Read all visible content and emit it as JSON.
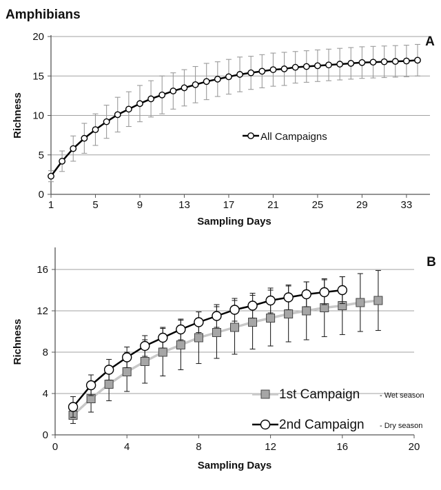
{
  "figure_title": "Amphibians",
  "chart_data": [
    {
      "panel": "A",
      "type": "line",
      "xlabel": "Sampling Days",
      "ylabel": "Richness",
      "xlim": [
        1,
        34
      ],
      "ylim": [
        0,
        20
      ],
      "xticks": [
        1,
        5,
        9,
        13,
        17,
        21,
        25,
        29,
        33
      ],
      "yticks": [
        0,
        5,
        10,
        15,
        20
      ],
      "grid": "horizontal",
      "legend_position": "center-right",
      "series": [
        {
          "name": "All Campaigns",
          "color": "#000000",
          "marker": "circle",
          "x": [
            1,
            2,
            3,
            4,
            5,
            6,
            7,
            8,
            9,
            10,
            11,
            12,
            13,
            14,
            15,
            16,
            17,
            18,
            19,
            20,
            21,
            22,
            23,
            24,
            25,
            26,
            27,
            28,
            29,
            30,
            31,
            32,
            33,
            34
          ],
          "y": [
            2.3,
            4.2,
            5.8,
            7.1,
            8.2,
            9.2,
            10.1,
            10.8,
            11.5,
            12.1,
            12.6,
            13.1,
            13.5,
            13.9,
            14.3,
            14.6,
            14.9,
            15.2,
            15.4,
            15.6,
            15.8,
            15.9,
            16.1,
            16.2,
            16.3,
            16.4,
            16.5,
            16.6,
            16.7,
            16.75,
            16.8,
            16.85,
            16.9,
            17.0
          ],
          "err": [
            0.7,
            1.3,
            1.6,
            1.9,
            2.0,
            2.1,
            2.2,
            2.2,
            2.3,
            2.3,
            2.4,
            2.3,
            2.3,
            2.3,
            2.3,
            2.2,
            2.2,
            2.2,
            2.1,
            2.1,
            2.1,
            2.1,
            2.0,
            2.0,
            2.0,
            2.0,
            2.0,
            2.0,
            2.0,
            2.0,
            2.0,
            2.0,
            2.0,
            2.0
          ]
        }
      ]
    },
    {
      "panel": "B",
      "type": "line",
      "xlabel": "Sampling Days",
      "ylabel": "Richness",
      "xlim": [
        0,
        20
      ],
      "ylim": [
        0,
        18
      ],
      "xticks": [
        0,
        4,
        8,
        12,
        16,
        20
      ],
      "yticks": [
        0,
        4,
        8,
        12,
        16
      ],
      "grid": "horizontal",
      "legend_position": "bottom-right",
      "series": [
        {
          "name": "1st Campaign",
          "note": "- Wet season",
          "color": "#c8c8c8",
          "marker": "square",
          "x": [
            1,
            2,
            3,
            4,
            5,
            6,
            7,
            8,
            9,
            10,
            11,
            12,
            13,
            14,
            15,
            16,
            17,
            18
          ],
          "y": [
            1.9,
            3.5,
            4.9,
            6.1,
            7.1,
            8.0,
            8.7,
            9.4,
            9.9,
            10.4,
            10.9,
            11.3,
            11.7,
            12.0,
            12.3,
            12.5,
            12.8,
            13.0
          ],
          "err": [
            0.8,
            1.3,
            1.6,
            1.9,
            2.1,
            2.3,
            2.4,
            2.5,
            2.5,
            2.6,
            2.6,
            2.7,
            2.7,
            2.8,
            2.8,
            2.8,
            2.8,
            2.9
          ]
        },
        {
          "name": "2nd Campaign",
          "note": "- Dry season",
          "color": "#000000",
          "marker": "circle",
          "x": [
            1,
            2,
            3,
            4,
            5,
            6,
            7,
            8,
            9,
            10,
            11,
            12,
            13,
            14,
            15,
            16
          ],
          "y": [
            2.7,
            4.8,
            6.3,
            7.5,
            8.6,
            9.4,
            10.2,
            10.9,
            11.5,
            12.1,
            12.5,
            13.0,
            13.3,
            13.6,
            13.8,
            14.0
          ],
          "err": [
            1.0,
            1.0,
            1.0,
            1.0,
            1.0,
            1.0,
            1.0,
            1.0,
            1.1,
            1.1,
            1.2,
            1.2,
            1.2,
            1.2,
            1.2,
            1.3
          ]
        }
      ]
    }
  ]
}
